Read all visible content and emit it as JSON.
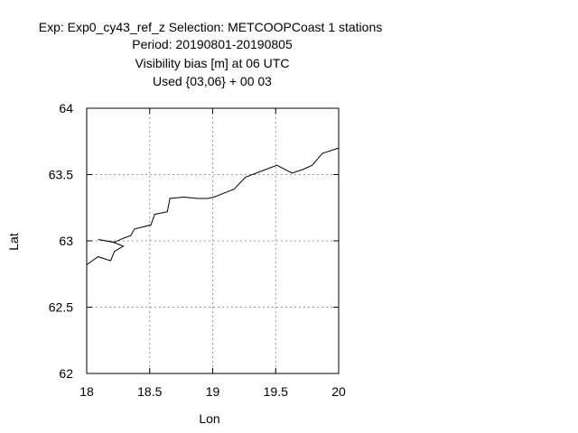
{
  "chart_data": {
    "type": "line",
    "title_lines": [
      "Exp: Exp0_cy43_ref_z   Selection: METCOOPCoast      1 stations",
      "Period: 20190801-20190805",
      "Visibility bias [m] at  06 UTC",
      "Used {03,06} + 00 03"
    ],
    "xlabel": "Lon",
    "ylabel": "Lat",
    "xlim": [
      18,
      20
    ],
    "ylim": [
      62,
      64
    ],
    "x_ticks": [
      18,
      18.5,
      19,
      19.5,
      20
    ],
    "y_ticks": [
      62,
      62.5,
      63,
      63.5,
      64
    ],
    "x_tick_labels": [
      "18",
      "18.5",
      "19",
      "19.5",
      "20"
    ],
    "y_tick_labels": [
      "62",
      "62.5",
      "63",
      "63.5",
      "64"
    ],
    "grid": true,
    "series": [
      {
        "color": "#000000",
        "points": [
          [
            18.0,
            62.82
          ],
          [
            18.09,
            62.88
          ],
          [
            18.19,
            62.85
          ],
          [
            18.22,
            62.92
          ],
          [
            18.29,
            62.96
          ],
          [
            18.21,
            62.99
          ],
          [
            18.09,
            63.01
          ],
          [
            18.22,
            62.99
          ],
          [
            18.29,
            63.02
          ],
          [
            18.35,
            63.04
          ],
          [
            18.38,
            63.09
          ],
          [
            18.51,
            63.12
          ],
          [
            18.54,
            63.2
          ],
          [
            18.64,
            63.22
          ],
          [
            18.66,
            63.32
          ],
          [
            18.77,
            63.33
          ],
          [
            18.88,
            63.32
          ],
          [
            18.96,
            63.32
          ],
          [
            19.01,
            63.33
          ],
          [
            19.17,
            63.39
          ],
          [
            19.26,
            63.48
          ],
          [
            19.37,
            63.52
          ],
          [
            19.51,
            63.57
          ],
          [
            19.63,
            63.51
          ],
          [
            19.72,
            63.54
          ],
          [
            19.79,
            63.57
          ],
          [
            19.87,
            63.66
          ],
          [
            20.0,
            63.7
          ]
        ]
      }
    ]
  }
}
